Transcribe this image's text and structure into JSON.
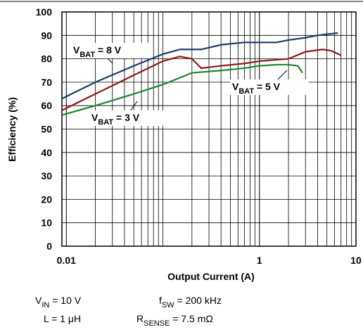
{
  "chart_data": {
    "type": "line",
    "xlabel": "Output Current (A)",
    "ylabel": "Efficiency (%)",
    "xscale": "log",
    "xlim": [
      0.009,
      10
    ],
    "xticks": [
      {
        "value": 0.01,
        "label": "0.01"
      },
      1,
      10
    ],
    "ylim": [
      0,
      100
    ],
    "yticks": [
      0,
      10,
      20,
      30,
      40,
      50,
      60,
      70,
      80,
      90,
      100
    ],
    "grid": true,
    "minor_grid": true,
    "series": [
      {
        "name": {
          "v": "V",
          "sub": "BAT",
          "rest": " = 8 V"
        },
        "color": "#1d3d6b",
        "x": [
          0.009,
          0.02,
          0.05,
          0.1,
          0.15,
          0.25,
          0.4,
          0.7,
          1,
          1.5,
          2,
          3,
          4,
          5,
          6.5
        ],
        "values": [
          63,
          70,
          77,
          82,
          84,
          84,
          86,
          87,
          87,
          87,
          88,
          89,
          90,
          90.5,
          91
        ]
      },
      {
        "name": {
          "v": "V",
          "sub": "BAT",
          "rest": " = 5 V"
        },
        "color": "#8b1a1a",
        "x": [
          0.009,
          0.02,
          0.05,
          0.1,
          0.15,
          0.2,
          0.25,
          0.4,
          0.7,
          1,
          2,
          3,
          4.5,
          5.5,
          7
        ],
        "values": [
          58,
          65,
          73,
          79,
          81,
          80,
          76,
          77,
          78,
          79,
          80,
          83,
          84,
          83.5,
          81.5
        ]
      },
      {
        "name": {
          "v": "V",
          "sub": "BAT",
          "rest": " = 3 V"
        },
        "color": "#1a8a2a",
        "x": [
          0.009,
          0.02,
          0.05,
          0.1,
          0.2,
          0.4,
          0.7,
          1,
          1.5,
          2,
          2.5,
          2.8
        ],
        "values": [
          56,
          60,
          65,
          69,
          74,
          75,
          76,
          77,
          77.5,
          77.5,
          77,
          74
        ]
      }
    ],
    "notes": [
      {
        "v": "V",
        "sub": "IN",
        "rest": " = 10 V"
      },
      {
        "v": "f",
        "sub": "SW",
        "rest": " = 200 kHz"
      },
      {
        "v": "L = 1 μH",
        "sub": "",
        "rest": ""
      },
      {
        "v": "R",
        "sub": "SENSE",
        "rest": " = 7.5 mΩ"
      }
    ]
  }
}
